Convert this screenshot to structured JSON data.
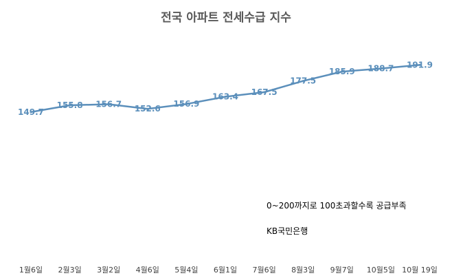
{
  "chart_data": {
    "type": "line",
    "title": "전국 아파트 전세수급 지수",
    "categories": [
      "1월6일",
      "2월3일",
      "3월2일",
      "4월6일",
      "5월4일",
      "6월1일",
      "7월6일",
      "8월3일",
      "9월7일",
      "10월5일",
      "10월 19일"
    ],
    "series": [
      {
        "values": [
          149.7,
          155.8,
          156.7,
          152.6,
          156.9,
          163.4,
          167.5,
          177.5,
          185.9,
          188.7,
          191.9
        ],
        "labels": [
          "149.7",
          "155.8",
          "156.7",
          "152.6",
          "156.9",
          "163.4",
          "167.5",
          "177.5",
          "185.9",
          "188.7",
          "191.9"
        ]
      }
    ],
    "annotations": [
      "0~200까지로 100초과할수록 공급부족",
      "KB국민은행"
    ],
    "ylim": [
      0,
      250
    ],
    "line_color": "#5b8fbb",
    "grid": false,
    "legend": "none"
  }
}
